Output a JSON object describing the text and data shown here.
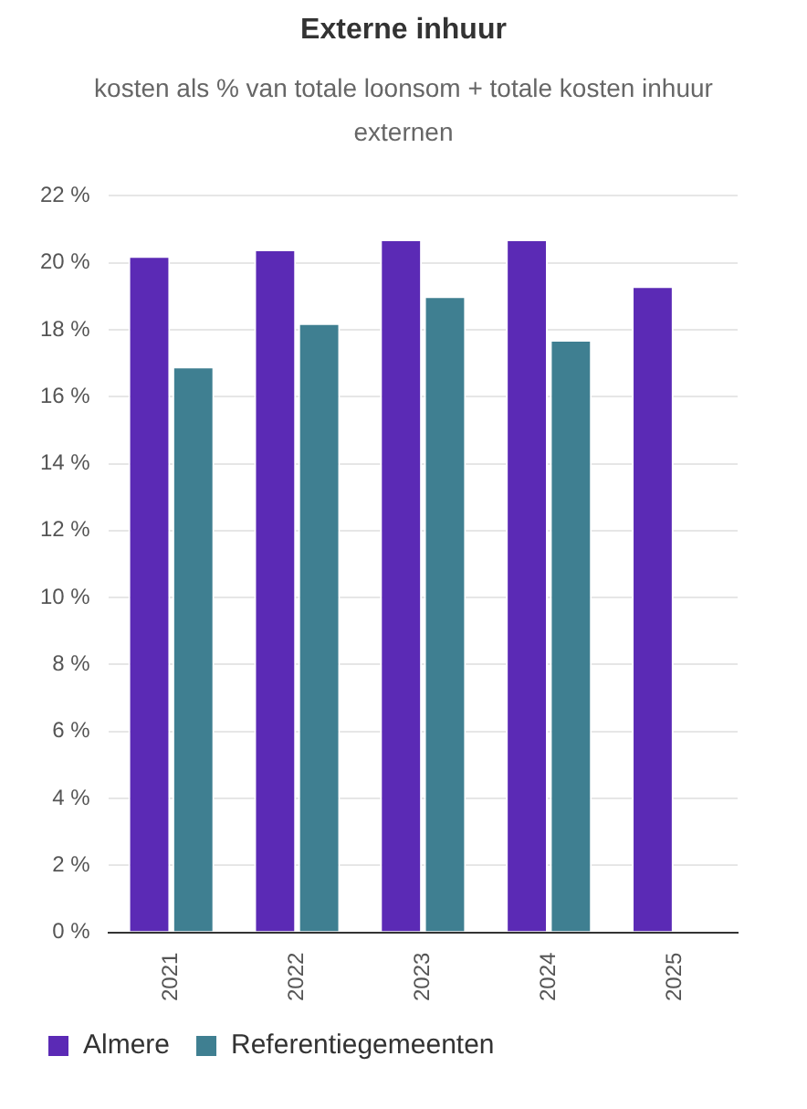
{
  "chart_data": {
    "type": "bar",
    "title": "Externe inhuur",
    "subtitle": "kosten als % van totale loonsom + totale kosten inhuur externen",
    "categories": [
      "2021",
      "2022",
      "2023",
      "2024",
      "2025"
    ],
    "series": [
      {
        "name": "Almere",
        "color": "#5b2ab5",
        "values": [
          20.2,
          20.4,
          20.7,
          20.7,
          19.3
        ]
      },
      {
        "name": "Referentiegemeenten",
        "color": "#3f7f91",
        "values": [
          16.9,
          18.2,
          19.0,
          17.7,
          null
        ]
      }
    ],
    "ylim": [
      0,
      22
    ],
    "yticks": [
      {
        "value": 0,
        "label": "0 %"
      },
      {
        "value": 2,
        "label": "2 %"
      },
      {
        "value": 4,
        "label": "4 %"
      },
      {
        "value": 6,
        "label": "6 %"
      },
      {
        "value": 8,
        "label": "8 %"
      },
      {
        "value": 10,
        "label": "10 %"
      },
      {
        "value": 12,
        "label": "12 %"
      },
      {
        "value": 14,
        "label": "14 %"
      },
      {
        "value": 16,
        "label": "16 %"
      },
      {
        "value": 18,
        "label": "18 %"
      },
      {
        "value": 20,
        "label": "20 %"
      },
      {
        "value": 22,
        "label": "22 %"
      }
    ],
    "grid": "y",
    "legend": "bottom"
  }
}
